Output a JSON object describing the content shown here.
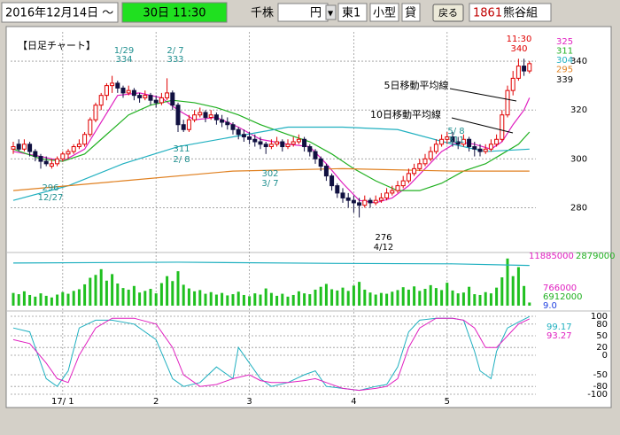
{
  "toolbar": {
    "date": "2016年12月14日 ～",
    "time": "30日 11:30",
    "unit": "千株",
    "price": "円",
    "market": "東1",
    "size": "小型",
    "lend": "貸",
    "back": "戻る",
    "code": "1861",
    "name": "熊谷組"
  },
  "chart_data": {
    "type": "candlestick",
    "title": "【日足チャート】",
    "candles": [
      [
        304,
        307,
        302,
        305
      ],
      [
        306,
        308,
        303,
        304
      ],
      [
        304,
        308,
        303,
        306
      ],
      [
        306,
        307,
        301,
        303
      ],
      [
        303,
        304,
        299,
        301
      ],
      [
        301,
        302,
        296,
        299
      ],
      [
        299,
        301,
        297,
        298
      ],
      [
        297,
        300,
        296,
        298
      ],
      [
        298,
        301,
        297,
        300
      ],
      [
        300,
        303,
        299,
        302
      ],
      [
        302,
        304,
        300,
        303
      ],
      [
        303,
        306,
        302,
        305
      ],
      [
        305,
        308,
        304,
        306
      ],
      [
        306,
        311,
        305,
        310
      ],
      [
        310,
        317,
        309,
        316
      ],
      [
        316,
        323,
        315,
        322
      ],
      [
        322,
        327,
        320,
        326
      ],
      [
        326,
        331,
        324,
        330
      ],
      [
        330,
        334,
        327,
        331
      ],
      [
        331,
        332,
        327,
        329
      ],
      [
        329,
        330,
        325,
        327
      ],
      [
        327,
        330,
        326,
        328
      ],
      [
        328,
        329,
        324,
        326
      ],
      [
        326,
        327,
        323,
        325
      ],
      [
        325,
        328,
        324,
        326
      ],
      [
        326,
        327,
        322,
        324
      ],
      [
        324,
        326,
        321,
        323
      ],
      [
        323,
        327,
        322,
        325
      ],
      [
        325,
        333,
        324,
        327
      ],
      [
        327,
        328,
        320,
        322
      ],
      [
        322,
        323,
        311,
        314
      ],
      [
        314,
        316,
        311,
        312
      ],
      [
        312,
        318,
        311,
        316
      ],
      [
        316,
        320,
        315,
        318
      ],
      [
        318,
        321,
        317,
        319
      ],
      [
        319,
        320,
        315,
        317
      ],
      [
        317,
        320,
        316,
        318
      ],
      [
        318,
        319,
        314,
        316
      ],
      [
        316,
        318,
        313,
        315
      ],
      [
        315,
        317,
        312,
        314
      ],
      [
        314,
        315,
        310,
        312
      ],
      [
        312,
        313,
        308,
        310
      ],
      [
        310,
        312,
        307,
        309
      ],
      [
        309,
        311,
        306,
        308
      ],
      [
        308,
        310,
        305,
        307
      ],
      [
        307,
        309,
        304,
        306
      ],
      [
        306,
        307,
        302,
        305
      ],
      [
        305,
        308,
        304,
        306
      ],
      [
        306,
        309,
        305,
        307
      ],
      [
        307,
        308,
        303,
        305
      ],
      [
        305,
        308,
        304,
        306
      ],
      [
        306,
        309,
        305,
        307
      ],
      [
        307,
        310,
        306,
        308
      ],
      [
        308,
        309,
        303,
        305
      ],
      [
        305,
        306,
        301,
        303
      ],
      [
        303,
        304,
        298,
        300
      ],
      [
        300,
        301,
        295,
        297
      ],
      [
        297,
        298,
        291,
        293
      ],
      [
        293,
        294,
        287,
        289
      ],
      [
        289,
        290,
        284,
        286
      ],
      [
        286,
        288,
        282,
        284
      ],
      [
        284,
        286,
        280,
        283
      ],
      [
        283,
        285,
        278,
        282
      ],
      [
        282,
        284,
        276,
        281
      ],
      [
        281,
        285,
        280,
        283
      ],
      [
        283,
        284,
        280,
        282
      ],
      [
        282,
        285,
        281,
        283
      ],
      [
        283,
        286,
        282,
        284
      ],
      [
        284,
        288,
        283,
        286
      ],
      [
        286,
        289,
        285,
        287
      ],
      [
        287,
        291,
        286,
        289
      ],
      [
        289,
        293,
        288,
        291
      ],
      [
        291,
        296,
        290,
        294
      ],
      [
        294,
        298,
        293,
        296
      ],
      [
        296,
        300,
        295,
        298
      ],
      [
        298,
        302,
        297,
        300
      ],
      [
        300,
        305,
        299,
        303
      ],
      [
        303,
        308,
        302,
        306
      ],
      [
        306,
        310,
        305,
        308
      ],
      [
        308,
        311,
        306,
        309
      ],
      [
        309,
        311,
        305,
        307
      ],
      [
        307,
        309,
        304,
        306
      ],
      [
        306,
        310,
        305,
        308
      ],
      [
        308,
        309,
        303,
        305
      ],
      [
        305,
        307,
        301,
        304
      ],
      [
        304,
        306,
        301,
        303
      ],
      [
        303,
        306,
        302,
        304
      ],
      [
        304,
        308,
        303,
        306
      ],
      [
        306,
        310,
        305,
        308
      ],
      [
        308,
        320,
        307,
        318
      ],
      [
        318,
        330,
        317,
        328
      ],
      [
        328,
        336,
        326,
        333
      ],
      [
        333,
        341,
        332,
        338
      ],
      [
        338,
        341,
        334,
        336
      ],
      [
        336,
        340,
        335,
        339
      ]
    ],
    "up_color": "#e00000",
    "down_color": "#101040",
    "ylim": [
      270,
      352
    ],
    "yticks": [
      280,
      300,
      320,
      340
    ],
    "xticks": [
      {
        "value": 9,
        "label": "17/ 1"
      },
      {
        "value": 26,
        "label": "2"
      },
      {
        "value": 43,
        "label": "3"
      },
      {
        "value": 62,
        "label": "4"
      },
      {
        "value": 79,
        "label": "5"
      }
    ],
    "series": [
      {
        "color": "#e020c0",
        "x": [
          0,
          5,
          9,
          13,
          16,
          19,
          23,
          27,
          30,
          33,
          37,
          41,
          45,
          50,
          54,
          57,
          60,
          63,
          66,
          69,
          72,
          75,
          78,
          81,
          84,
          87,
          89,
          91,
          93,
          94
        ],
        "values": [
          303,
          301,
          299,
          304,
          315,
          326,
          327,
          325,
          320,
          316,
          317,
          313,
          308,
          306,
          305,
          298,
          290,
          283,
          282,
          284,
          289,
          296,
          303,
          307,
          306,
          304,
          307,
          314,
          320,
          325
        ]
      },
      {
        "color": "#20b020",
        "x": [
          0,
          5,
          9,
          13,
          17,
          21,
          25,
          29,
          33,
          37,
          41,
          45,
          50,
          54,
          58,
          62,
          66,
          70,
          74,
          78,
          82,
          86,
          89,
          92,
          94
        ],
        "values": [
          304,
          300,
          299,
          302,
          310,
          318,
          322,
          324,
          323,
          321,
          318,
          314,
          310,
          307,
          302,
          296,
          291,
          287,
          287,
          290,
          295,
          298,
          302,
          306,
          311
        ]
      },
      {
        "color": "#20b0c0",
        "x": [
          0,
          10,
          20,
          30,
          40,
          50,
          60,
          70,
          80,
          86,
          94
        ],
        "values": [
          283,
          289,
          298,
          305,
          309,
          313,
          313,
          312,
          306,
          303,
          304
        ]
      },
      {
        "color": "#e08020",
        "x": [
          0,
          20,
          40,
          60,
          80,
          94
        ],
        "values": [
          287,
          291,
          295,
          296,
          295,
          295
        ]
      }
    ],
    "annotations": [
      {
        "date": "1/29",
        "value": 334
      },
      {
        "date": "2/ 7",
        "value": 333
      },
      {
        "date": "2/ 8",
        "value": 311
      },
      {
        "date": "3/ 7",
        "value": 302
      },
      {
        "date": "12/27",
        "value": 296
      },
      {
        "date": "4/12",
        "value": 276
      },
      {
        "date": "5/ 8",
        "value": 311
      },
      {
        "date": "11:30",
        "value": 340
      }
    ],
    "ma_notes": [
      "5日移動平均線",
      "10日移動平均線"
    ],
    "volume": [
      3100000,
      2800000,
      3500000,
      2600000,
      2200000,
      3000000,
      2400000,
      2000000,
      2700000,
      3300000,
      2900000,
      3600000,
      4000000,
      5200000,
      6800000,
      7500000,
      8900000,
      6100000,
      7700000,
      5400000,
      4300000,
      3900000,
      4800000,
      3200000,
      3600000,
      4100000,
      3000000,
      5500000,
      7200000,
      6000000,
      8400000,
      5100000,
      4200000,
      3500000,
      3800000,
      2900000,
      3300000,
      2700000,
      3100000,
      2500000,
      2800000,
      3400000,
      2600000,
      2300000,
      3000000,
      2700000,
      4200000,
      3100000,
      2400000,
      2900000,
      2200000,
      2600000,
      3500000,
      3000000,
      2800000,
      3900000,
      4600000,
      5300000,
      4000000,
      3700000,
      4400000,
      3600000,
      4900000,
      5800000,
      3900000,
      3200000,
      2700000,
      3100000,
      2900000,
      3400000,
      3800000,
      4500000,
      3900000,
      4700000,
      3600000,
      4100000,
      5000000,
      4300000,
      3800000,
      5600000,
      3700000,
      3000000,
      3200000,
      4600000,
      2800000,
      2600000,
      3300000,
      3000000,
      4400000,
      6900000,
      11500000,
      7200000,
      9400000,
      4800000,
      766000
    ],
    "volume_color": "#20c020",
    "volume_ylim": [
      0,
      11885000
    ],
    "volume_line": {
      "color": "#20b0c0",
      "x": [
        0,
        30,
        60,
        80,
        94
      ],
      "values": [
        10400000,
        10600000,
        10300000,
        10200000,
        9800000
      ]
    },
    "volume_labels": [
      {
        "value": 11885000,
        "color": "#e020c0"
      },
      {
        "value": 2879000,
        "color": "#20b020"
      },
      {
        "value": 6912000,
        "color": "#20b020"
      },
      {
        "value": 9.0,
        "label": "9.0",
        "color": "#2040e0"
      }
    ],
    "stoch_ylim": [
      -100,
      100
    ],
    "stoch_yticks": [
      100,
      80,
      50,
      20,
      0,
      -50,
      -80,
      -100
    ],
    "stoch": [
      {
        "color": "#20b0c0",
        "x": [
          0,
          3,
          6,
          8,
          10,
          12,
          15,
          18,
          22,
          26,
          29,
          31,
          34,
          37,
          40,
          41,
          43,
          45,
          47,
          50,
          53,
          55,
          57,
          60,
          63,
          66,
          68,
          70,
          72,
          74,
          77,
          80,
          82,
          84,
          85,
          87,
          88,
          90,
          92,
          94
        ],
        "values": [
          70,
          60,
          -60,
          -80,
          -40,
          70,
          90,
          90,
          80,
          40,
          -60,
          -80,
          -70,
          -30,
          -60,
          20,
          -20,
          -60,
          -80,
          -70,
          -50,
          -40,
          -80,
          -85,
          -90,
          -80,
          -75,
          -30,
          60,
          90,
          95,
          95,
          90,
          10,
          -40,
          -60,
          10,
          70,
          85,
          99.17
        ]
      },
      {
        "color": "#e020c0",
        "x": [
          0,
          3,
          6,
          8,
          10,
          12,
          15,
          18,
          22,
          26,
          29,
          31,
          34,
          37,
          40,
          43,
          45,
          47,
          50,
          53,
          55,
          57,
          60,
          63,
          66,
          68,
          70,
          72,
          74,
          77,
          80,
          82,
          84,
          86,
          88,
          90,
          92,
          94
        ],
        "values": [
          40,
          30,
          -20,
          -60,
          -70,
          0,
          70,
          95,
          95,
          80,
          20,
          -50,
          -80,
          -75,
          -60,
          -50,
          -65,
          -70,
          -70,
          -65,
          -60,
          -70,
          -85,
          -90,
          -85,
          -80,
          -60,
          20,
          70,
          95,
          95,
          90,
          70,
          20,
          20,
          50,
          80,
          93.27
        ]
      }
    ]
  }
}
